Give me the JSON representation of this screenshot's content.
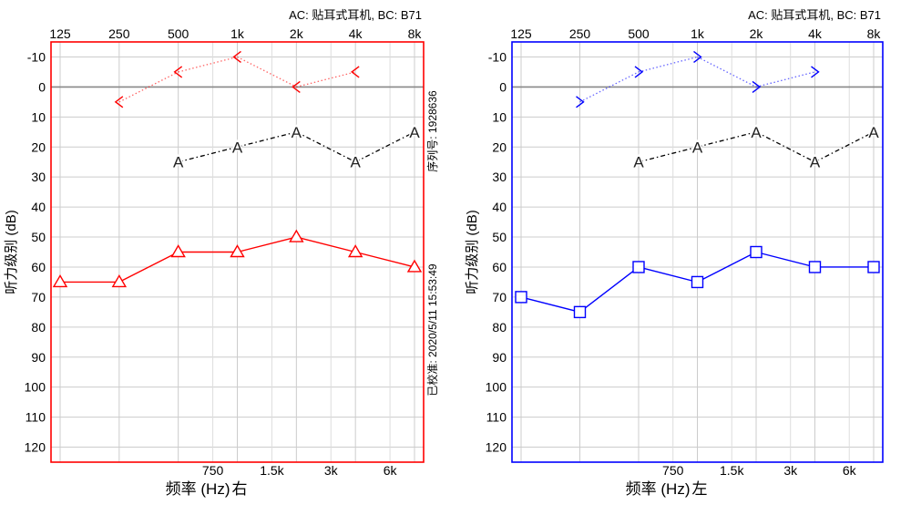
{
  "chart_data": [
    {
      "type": "line",
      "side_label": "右",
      "header": "AC: 贴耳式耳机, BC: B71",
      "ylabel": "听力级别 (dB)",
      "xlabel": "频率 (Hz)",
      "side_info": {
        "serial": "序列号: 1928636",
        "calibrated": "已校准: 2020/5/11 15:53:49"
      },
      "x_ticks_top": [
        "125",
        "250",
        "500",
        "1k",
        "2k",
        "4k",
        "8k"
      ],
      "x_ticks_bottom": [
        "750",
        "1.5k",
        "3k",
        "6k"
      ],
      "x_tick_values_top": [
        125,
        250,
        500,
        1000,
        2000,
        4000,
        8000
      ],
      "x_tick_values_bottom": [
        750,
        1500,
        3000,
        6000
      ],
      "xlim": [
        125,
        8000
      ],
      "ylim": [
        -15,
        125
      ],
      "y_ticks": [
        -10,
        0,
        10,
        20,
        30,
        40,
        50,
        60,
        70,
        80,
        90,
        100,
        110,
        120
      ],
      "reference_line": 0,
      "grid": true,
      "frame_color": "#ff0000",
      "series": [
        {
          "marker": "triangle",
          "color": "#ff0000",
          "line": "solid",
          "x": [
            125,
            250,
            500,
            1000,
            2000,
            4000,
            8000
          ],
          "y": [
            65,
            65,
            55,
            55,
            50,
            55,
            60
          ]
        },
        {
          "marker": "A",
          "color": "#000000",
          "line": "dashdot",
          "x": [
            500,
            1000,
            2000,
            4000,
            8000
          ],
          "y": [
            25,
            20,
            15,
            25,
            15
          ]
        },
        {
          "marker": "chevron-left",
          "color": "#ff0000",
          "line": "dotted",
          "x": [
            250,
            500,
            1000,
            2000,
            4000
          ],
          "y": [
            5,
            -5,
            -10,
            0,
            -5
          ]
        }
      ]
    },
    {
      "type": "line",
      "side_label": "左",
      "header": "AC: 贴耳式耳机, BC: B71",
      "ylabel": "听力级别 (dB)",
      "xlabel": "频率 (Hz)",
      "x_ticks_top": [
        "125",
        "250",
        "500",
        "1k",
        "2k",
        "4k",
        "8k"
      ],
      "x_ticks_bottom": [
        "750",
        "1.5k",
        "3k",
        "6k"
      ],
      "x_tick_values_top": [
        125,
        250,
        500,
        1000,
        2000,
        4000,
        8000
      ],
      "x_tick_values_bottom": [
        750,
        1500,
        3000,
        6000
      ],
      "xlim": [
        125,
        8000
      ],
      "ylim": [
        -15,
        125
      ],
      "y_ticks": [
        -10,
        0,
        10,
        20,
        30,
        40,
        50,
        60,
        70,
        80,
        90,
        100,
        110,
        120
      ],
      "reference_line": 0,
      "grid": true,
      "frame_color": "#0000ff",
      "series": [
        {
          "marker": "square",
          "color": "#0000ff",
          "line": "solid",
          "x": [
            125,
            250,
            500,
            1000,
            2000,
            4000,
            8000
          ],
          "y": [
            70,
            75,
            60,
            65,
            55,
            60,
            60
          ]
        },
        {
          "marker": "A",
          "color": "#000000",
          "line": "dashdot",
          "x": [
            500,
            1000,
            2000,
            4000,
            8000
          ],
          "y": [
            25,
            20,
            15,
            25,
            15
          ]
        },
        {
          "marker": "chevron-right",
          "color": "#0000ff",
          "line": "dotted",
          "x": [
            250,
            500,
            1000,
            2000,
            4000
          ],
          "y": [
            5,
            -5,
            -10,
            0,
            -5
          ]
        }
      ]
    }
  ]
}
